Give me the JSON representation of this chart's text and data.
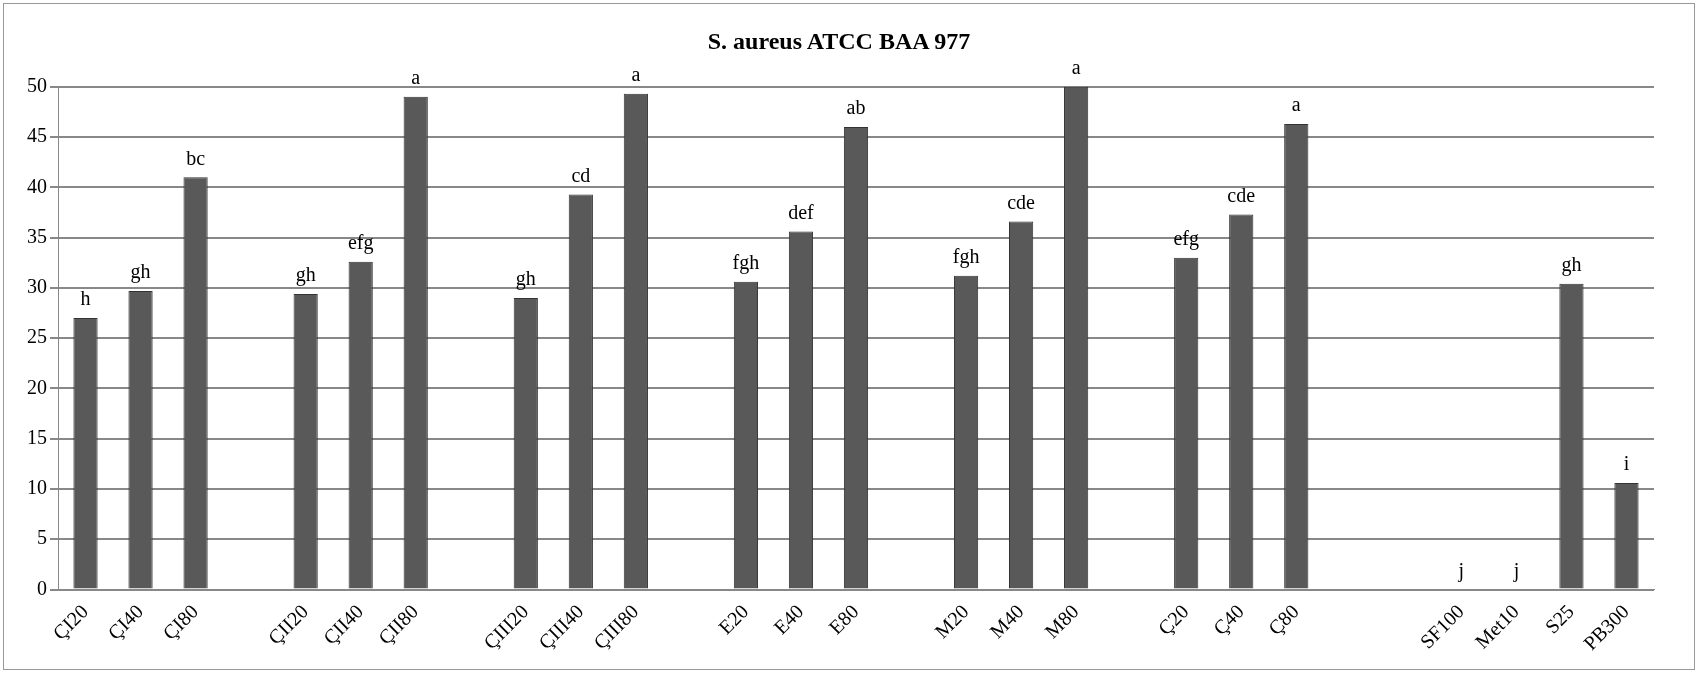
{
  "chart_data": {
    "type": "bar",
    "title": "S. aureus ATCC BAA 977",
    "categories": [
      "ÇI20",
      "ÇI40",
      "ÇI80",
      null,
      "ÇII20",
      "ÇII40",
      "ÇII80",
      null,
      "ÇIII20",
      "ÇIII40",
      "ÇIII80",
      null,
      "E20",
      "E40",
      "E80",
      null,
      "M20",
      "M40",
      "M80",
      null,
      "Ç20",
      "Ç40",
      "Ç80",
      null,
      null,
      "SF100",
      "Met10",
      "S25",
      "PB300"
    ],
    "values": [
      27,
      29.7,
      41,
      null,
      29.4,
      32.6,
      49,
      null,
      29,
      39.3,
      49.3,
      null,
      30.6,
      35.6,
      46,
      null,
      31.2,
      36.6,
      50,
      null,
      33,
      37.3,
      46.3,
      null,
      null,
      0,
      0,
      30.4,
      10.6
    ],
    "value_labels": [
      "h",
      "gh",
      "bc",
      null,
      "gh",
      "efg",
      "a",
      null,
      "gh",
      "cd",
      "a",
      null,
      "fgh",
      "def",
      "ab",
      null,
      "fgh",
      "cde",
      "a",
      null,
      "efg",
      "cde",
      "a",
      null,
      null,
      "j",
      "j",
      "gh",
      "i"
    ],
    "color": "#595959",
    "ylim": [
      0,
      50
    ],
    "yticks": [
      0,
      5,
      10,
      15,
      20,
      25,
      30,
      35,
      40,
      45,
      50
    ],
    "grid": "y"
  }
}
